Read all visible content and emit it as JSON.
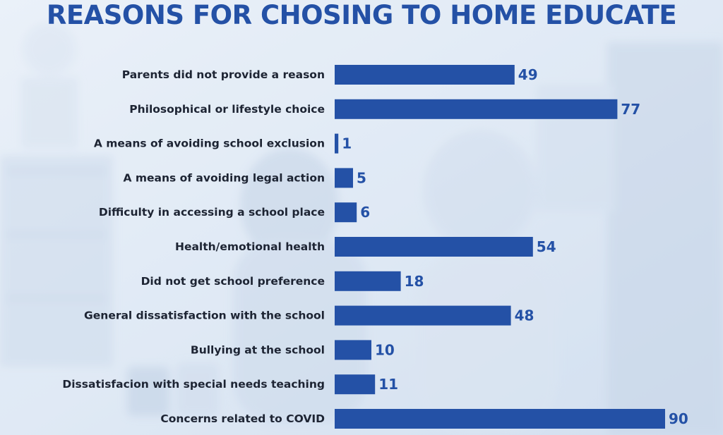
{
  "colors": {
    "bar": "#2451a6",
    "title": "#2451a6",
    "label": "#1d2433",
    "value": "#2451a6"
  },
  "chart_data": {
    "type": "bar",
    "orientation": "horizontal",
    "title": "REASONS FOR CHOSING TO HOME EDUCATE",
    "xlabel": "",
    "ylabel": "",
    "xlim": [
      0,
      90
    ],
    "grid": false,
    "legend": "none",
    "categories": [
      "Parents did not provide a reason",
      "Philosophical or lifestyle choice",
      "A means of avoiding school exclusion",
      "A means of avoiding legal action",
      "Difficulty in accessing a school place",
      "Health/emotional health",
      "Did not get school preference",
      "General dissatisfaction with the school",
      "Bullying at the school",
      "Dissatisfacion with special needs teaching",
      "Concerns related to COVID"
    ],
    "values": [
      49,
      77,
      1,
      5,
      6,
      54,
      18,
      48,
      10,
      11,
      90
    ]
  }
}
